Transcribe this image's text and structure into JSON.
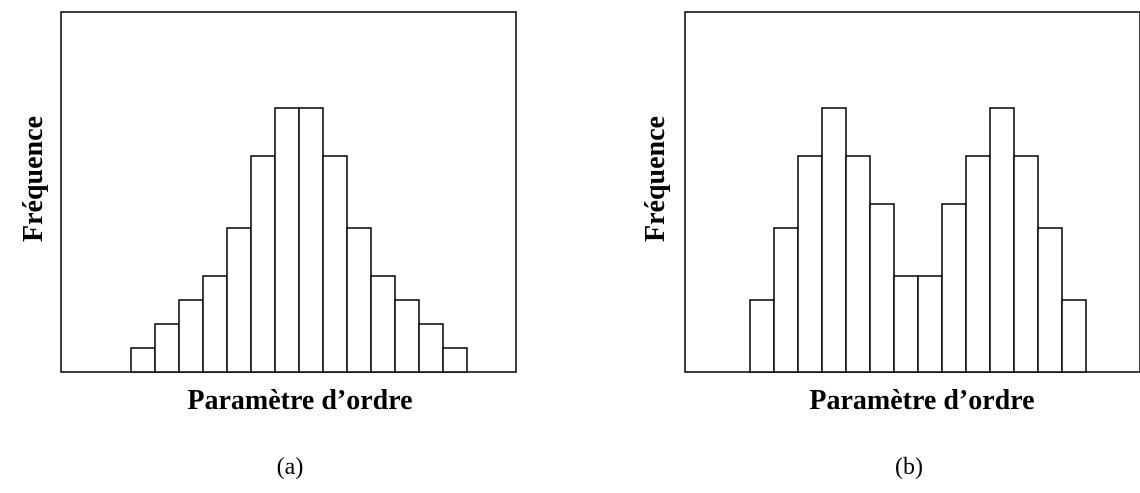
{
  "chart_data": [
    {
      "type": "bar",
      "panel": "(a)",
      "xlabel": "Paramètre d’ordre",
      "ylabel": "Fréquence",
      "values": [
        1,
        2,
        3,
        4,
        6,
        9,
        11,
        11,
        9,
        6,
        4,
        3,
        2,
        1
      ],
      "ylim": [
        0,
        15
      ],
      "grid": false,
      "ticks": false
    },
    {
      "type": "bar",
      "panel": "(b)",
      "xlabel": "Paramètre d’ordre",
      "ylabel": "Fréquence",
      "values": [
        3,
        6,
        9,
        11,
        9,
        7,
        4,
        4,
        7,
        9,
        11,
        9,
        6,
        3
      ],
      "ylim": [
        0,
        15
      ],
      "grid": false,
      "ticks": false
    }
  ],
  "colors": {
    "bar_fill": "#ffffff",
    "bar_stroke": "#000000",
    "frame": "#000000"
  }
}
